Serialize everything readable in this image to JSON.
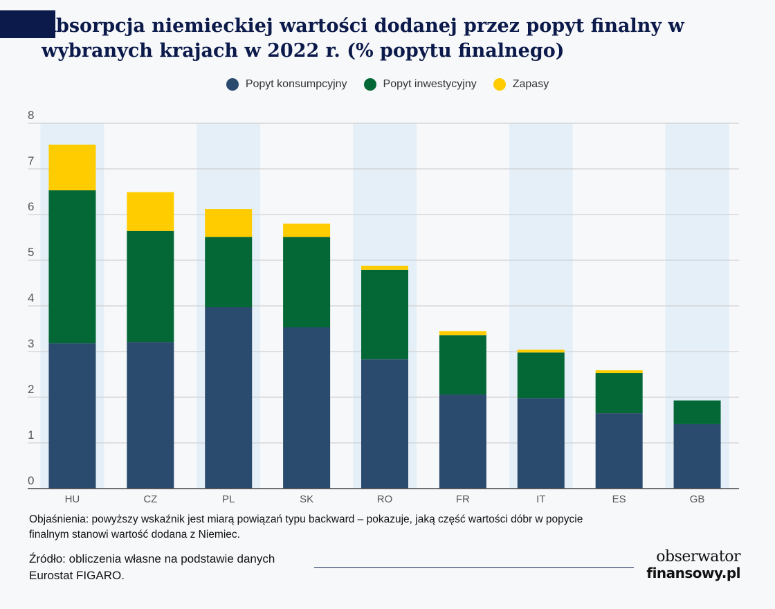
{
  "chart_data": {
    "type": "bar",
    "stacked": true,
    "title": "Absorpcja niemieckiej wartości dodanej przez popyt finalny w wybranych krajach w 2022 r. (% popytu finalnego)",
    "categories": [
      "HU",
      "CZ",
      "PL",
      "SK",
      "RO",
      "FR",
      "IT",
      "ES",
      "GB"
    ],
    "series": [
      {
        "name": "Popyt konsumpcyjny",
        "color": "#2a4a6e",
        "values": [
          3.18,
          3.21,
          3.97,
          3.53,
          2.83,
          2.06,
          1.98,
          1.65,
          1.41
        ]
      },
      {
        "name": "Popyt inwestycyjny",
        "color": "#046836",
        "values": [
          3.35,
          2.43,
          1.54,
          1.98,
          1.96,
          1.3,
          1.0,
          0.88,
          0.52
        ]
      },
      {
        "name": "Zapasy",
        "color": "#ffcc00",
        "values": [
          1.0,
          0.85,
          0.61,
          0.29,
          0.09,
          0.09,
          0.06,
          0.06,
          0.0
        ]
      }
    ],
    "ylim": [
      0,
      8
    ],
    "yticks": [
      "0",
      "1",
      "2",
      "3",
      "4",
      "5",
      "6",
      "7",
      "8"
    ],
    "grid": true,
    "legend_position": "top-center"
  },
  "note": "Objaśnienia: powyższy wskaźnik jest miarą powiązań typu backward – pokazuje, jaką część wartości dóbr w popycie finalnym stanowi wartość dodana z Niemiec.",
  "source": "Źródło: obliczenia własne na podstawie danych Eurostat FIGARO.",
  "logo": {
    "top": "obserwator",
    "bottom": "finansowy.pl"
  },
  "colors": {
    "title": "#0b1a4a",
    "band": "#e5eff8",
    "grid": "#c8c8c8",
    "axis": "#555555"
  }
}
